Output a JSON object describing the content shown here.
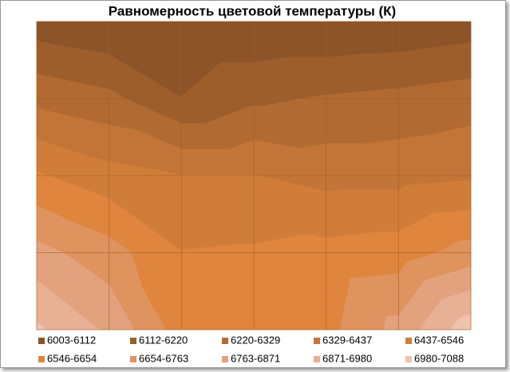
{
  "chart_data": {
    "type": "contour",
    "title": "Равномерность цветовой температуры (К)",
    "levels": [
      6003,
      6112,
      6220,
      6329,
      6437,
      6546,
      6654,
      6763,
      6871,
      6980,
      7088
    ],
    "series": [
      {
        "name": "6003-6112",
        "color": "#8c5428"
      },
      {
        "name": "6112-6220",
        "color": "#9d5e2c"
      },
      {
        "name": "6220-6329",
        "color": "#b16a31"
      },
      {
        "name": "6329-6437",
        "color": "#c27536"
      },
      {
        "name": "6437-6546",
        "color": "#d07d3a"
      },
      {
        "name": "6546-6654",
        "color": "#e0853d"
      },
      {
        "name": "6654-6763",
        "color": "#df935e"
      },
      {
        "name": "6763-6871",
        "color": "#e3a27e"
      },
      {
        "name": "6871-6980",
        "color": "#e8b195"
      },
      {
        "name": "6980-7088",
        "color": "#efc3ae"
      }
    ],
    "z": [
      [
        6050,
        6010,
        6010,
        6010,
        6010,
        6020,
        6050
      ],
      [
        6300,
        6250,
        6115,
        6200,
        6230,
        6250,
        6280
      ],
      [
        6560,
        6480,
        6440,
        6440,
        6400,
        6400,
        6420
      ],
      [
        6800,
        6700,
        6550,
        6560,
        6580,
        6600,
        6700
      ],
      [
        7000,
        6850,
        6600,
        6600,
        6620,
        6800,
        7050
      ]
    ],
    "grid": true
  }
}
